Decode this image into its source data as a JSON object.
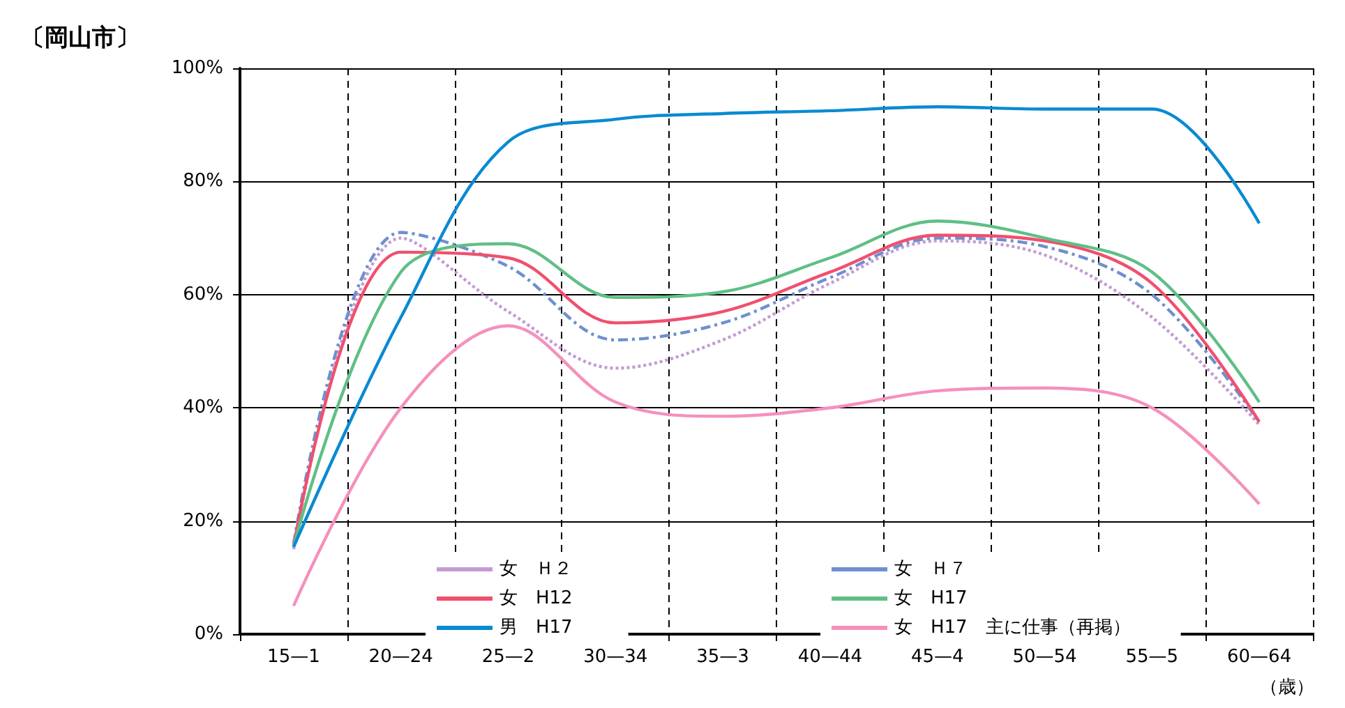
{
  "chart_data": {
    "type": "line",
    "title": "〔岡山市〕",
    "xlabel": "（歳）",
    "categories": [
      "15—1",
      "20—24",
      "25—2",
      "30—34",
      "35—3",
      "40—44",
      "45—4",
      "50—54",
      "55—5",
      "60—64"
    ],
    "ylim": [
      0,
      100
    ],
    "yticks": [
      {
        "value": 0,
        "label": "0%"
      },
      {
        "value": 20,
        "label": "20%"
      },
      {
        "value": 40,
        "label": "40%"
      },
      {
        "value": 60,
        "label": "60%"
      },
      {
        "value": 80,
        "label": "80%"
      },
      {
        "value": 100,
        "label": "100%"
      }
    ],
    "grid": true,
    "legend": "bottom",
    "marker": "none",
    "series": [
      {
        "name": "女　Ｈ２",
        "color": "#c39bd3",
        "line_style": "dotted",
        "values": [
          15,
          70,
          57,
          47,
          52,
          62,
          69.5,
          67,
          56,
          37
        ]
      },
      {
        "name": "女　Ｈ７",
        "color": "#6f8fd0",
        "line_style": "dashed",
        "values": [
          16,
          71,
          65,
          52,
          55,
          63,
          70,
          68.5,
          60,
          37.5
        ]
      },
      {
        "name": "女　H12",
        "color": "#f0506e",
        "line_style": "solid",
        "values": [
          15.5,
          67.5,
          66.5,
          55,
          57,
          64,
          70.5,
          69.5,
          62,
          37.5
        ]
      },
      {
        "name": "女　H17",
        "color": "#5fbf85",
        "line_style": "solid",
        "values": [
          15.5,
          64,
          69,
          59.5,
          60.5,
          66.5,
          73,
          70,
          64,
          41
        ]
      },
      {
        "name": "男　H17",
        "color": "#0a8ad2",
        "line_style": "solid",
        "values": [
          15.4,
          56,
          87,
          91,
          92,
          92.5,
          93.2,
          92.8,
          92.8,
          72.6
        ]
      },
      {
        "name": "女　H17　主に仕事（再掲）",
        "color": "#f590bd",
        "line_style": "solid",
        "values": [
          5,
          40,
          54.5,
          41,
          38.5,
          40,
          43,
          43.5,
          40,
          23
        ]
      }
    ]
  }
}
